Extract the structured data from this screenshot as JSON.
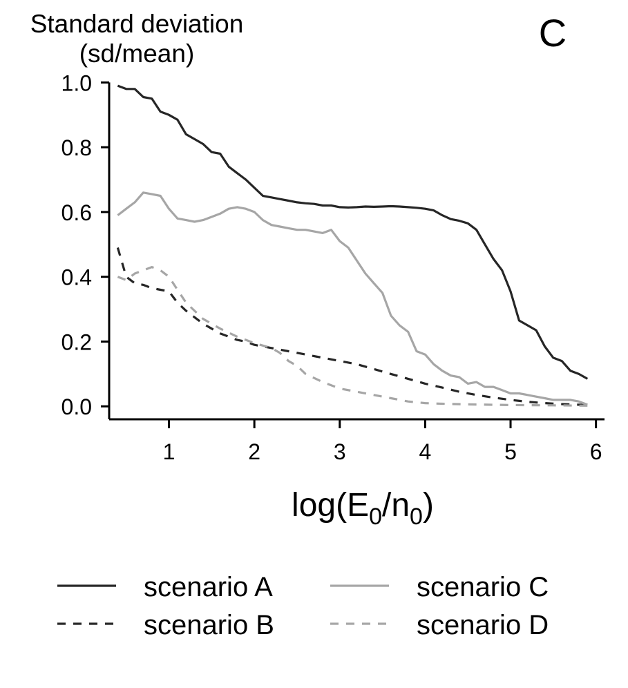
{
  "panel_label": "C",
  "colors": {
    "dark": "#262626",
    "light": "#a6a6a6",
    "axis": "#000000"
  },
  "chart_data": {
    "type": "line",
    "title": "",
    "ylabel_line1": "Standard deviation",
    "ylabel_line2": "(sd/mean)",
    "xlabel": "log(E0/n0)",
    "xlim": [
      0.3,
      6.1
    ],
    "ylim": [
      -0.04,
      1.02
    ],
    "xticks": [
      1,
      2,
      3,
      4,
      5,
      6
    ],
    "xtick_labels": [
      "1",
      "2",
      "3",
      "4",
      "5",
      "6"
    ],
    "yticks": [
      0,
      0.2,
      0.4,
      0.6,
      0.8,
      1.0
    ],
    "ytick_labels": [
      "0.0",
      "0.2",
      "0.4",
      "0.6",
      "0.8",
      "1.0"
    ],
    "grid": false,
    "legend_position": "bottom",
    "series": [
      {
        "name": "scenario A",
        "color": "#262626",
        "dash": "solid",
        "x": [
          0.4,
          0.5,
          0.6,
          0.7,
          0.8,
          0.9,
          1.0,
          1.1,
          1.2,
          1.3,
          1.4,
          1.5,
          1.6,
          1.7,
          1.8,
          1.9,
          2.0,
          2.1,
          2.2,
          2.3,
          2.4,
          2.5,
          2.6,
          2.7,
          2.8,
          2.9,
          3.0,
          3.1,
          3.2,
          3.3,
          3.4,
          3.5,
          3.6,
          3.7,
          3.8,
          3.9,
          4.0,
          4.1,
          4.2,
          4.3,
          4.4,
          4.5,
          4.6,
          4.7,
          4.8,
          4.9,
          5.0,
          5.1,
          5.2,
          5.3,
          5.4,
          5.5,
          5.6,
          5.7,
          5.8,
          5.9
        ],
        "values": [
          0.99,
          0.98,
          0.98,
          0.955,
          0.95,
          0.91,
          0.9,
          0.885,
          0.84,
          0.825,
          0.81,
          0.785,
          0.78,
          0.74,
          0.72,
          0.7,
          0.675,
          0.65,
          0.645,
          0.64,
          0.635,
          0.63,
          0.627,
          0.625,
          0.62,
          0.62,
          0.615,
          0.614,
          0.615,
          0.617,
          0.616,
          0.617,
          0.618,
          0.617,
          0.615,
          0.613,
          0.61,
          0.605,
          0.59,
          0.578,
          0.573,
          0.565,
          0.545,
          0.5,
          0.455,
          0.42,
          0.355,
          0.265,
          0.25,
          0.235,
          0.185,
          0.15,
          0.14,
          0.11,
          0.1,
          0.085
        ]
      },
      {
        "name": "scenario B",
        "color": "#262626",
        "dash": "dashed",
        "x": [
          0.4,
          0.5,
          0.6,
          0.7,
          0.8,
          0.9,
          1.0,
          1.1,
          1.2,
          1.3,
          1.4,
          1.5,
          1.6,
          1.7,
          1.8,
          1.9,
          2.0,
          2.2,
          2.4,
          2.6,
          2.8,
          3.0,
          3.2,
          3.4,
          3.6,
          3.8,
          4.0,
          4.2,
          4.4,
          4.6,
          4.8,
          5.0,
          5.2,
          5.4,
          5.6,
          5.8,
          5.9
        ],
        "values": [
          0.49,
          0.4,
          0.38,
          0.375,
          0.365,
          0.36,
          0.355,
          0.32,
          0.295,
          0.275,
          0.255,
          0.24,
          0.225,
          0.215,
          0.205,
          0.2,
          0.19,
          0.18,
          0.17,
          0.16,
          0.15,
          0.14,
          0.13,
          0.115,
          0.1,
          0.085,
          0.07,
          0.058,
          0.045,
          0.035,
          0.027,
          0.02,
          0.014,
          0.01,
          0.007,
          0.005,
          0.004
        ]
      },
      {
        "name": "scenario C",
        "color": "#a6a6a6",
        "dash": "solid",
        "x": [
          0.4,
          0.5,
          0.6,
          0.7,
          0.8,
          0.9,
          1.0,
          1.1,
          1.2,
          1.3,
          1.4,
          1.5,
          1.6,
          1.7,
          1.8,
          1.9,
          2.0,
          2.1,
          2.2,
          2.3,
          2.4,
          2.5,
          2.6,
          2.7,
          2.8,
          2.9,
          3.0,
          3.1,
          3.2,
          3.3,
          3.4,
          3.5,
          3.6,
          3.7,
          3.8,
          3.9,
          4.0,
          4.1,
          4.2,
          4.3,
          4.4,
          4.5,
          4.6,
          4.7,
          4.8,
          4.9,
          5.0,
          5.1,
          5.2,
          5.3,
          5.4,
          5.5,
          5.6,
          5.7,
          5.8,
          5.9
        ],
        "values": [
          0.59,
          0.61,
          0.63,
          0.66,
          0.655,
          0.65,
          0.61,
          0.58,
          0.575,
          0.57,
          0.575,
          0.585,
          0.595,
          0.61,
          0.615,
          0.61,
          0.6,
          0.575,
          0.56,
          0.555,
          0.55,
          0.545,
          0.545,
          0.54,
          0.535,
          0.545,
          0.51,
          0.49,
          0.45,
          0.41,
          0.38,
          0.35,
          0.28,
          0.25,
          0.23,
          0.17,
          0.16,
          0.13,
          0.11,
          0.095,
          0.09,
          0.07,
          0.075,
          0.06,
          0.06,
          0.05,
          0.04,
          0.04,
          0.035,
          0.03,
          0.025,
          0.02,
          0.02,
          0.02,
          0.015,
          0.005
        ]
      },
      {
        "name": "scenario D",
        "color": "#a6a6a6",
        "dash": "dashed",
        "x": [
          0.4,
          0.5,
          0.6,
          0.7,
          0.8,
          0.9,
          1.0,
          1.1,
          1.2,
          1.4,
          1.6,
          1.8,
          2.0,
          2.2,
          2.3,
          2.4,
          2.5,
          2.6,
          2.8,
          3.0,
          3.2,
          3.4,
          3.6,
          3.8,
          4.0,
          4.2,
          4.5,
          5.0,
          5.5,
          5.9
        ],
        "values": [
          0.4,
          0.39,
          0.41,
          0.42,
          0.43,
          0.42,
          0.4,
          0.36,
          0.32,
          0.27,
          0.24,
          0.215,
          0.195,
          0.18,
          0.165,
          0.14,
          0.125,
          0.1,
          0.075,
          0.055,
          0.045,
          0.035,
          0.025,
          0.015,
          0.01,
          0.008,
          0.006,
          0.004,
          0.003,
          0.002
        ]
      }
    ]
  }
}
